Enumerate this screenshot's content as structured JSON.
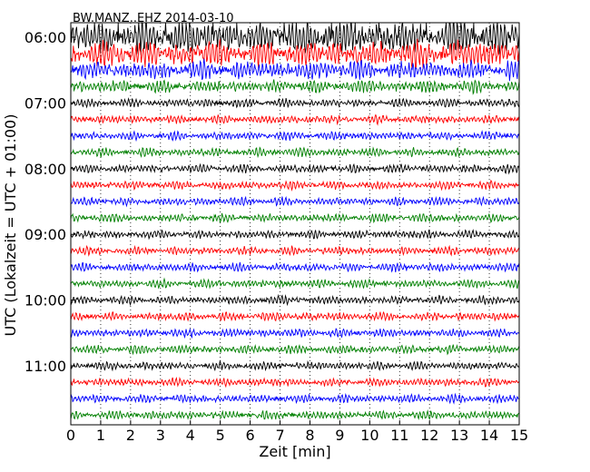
{
  "chart_data": {
    "type": "line",
    "title": "BW.MANZ..EHZ 2014-03-10",
    "xlabel": "Zeit  [min]",
    "ylabel": "UTC (Lokalzeit = UTC + 01:00)",
    "xlim": [
      0,
      15
    ],
    "x_ticks": [
      "0",
      "1",
      "2",
      "3",
      "4",
      "5",
      "6",
      "7",
      "8",
      "9",
      "10",
      "11",
      "12",
      "13",
      "14",
      "15"
    ],
    "y_tick_labels": [
      "06:00",
      "07:00",
      "08:00",
      "09:00",
      "10:00",
      "11:00"
    ],
    "grid": "vertical dotted lines at each minute",
    "trace_colors": [
      "#000000",
      "#ff0000",
      "#0000ff",
      "#008000"
    ],
    "traces_start": "06:00",
    "trace_interval_minutes": 15,
    "trace_count": 24,
    "amplitude_note": "relative, traces 06:00–06:45 have large amplitude clipped by plot top"
  }
}
